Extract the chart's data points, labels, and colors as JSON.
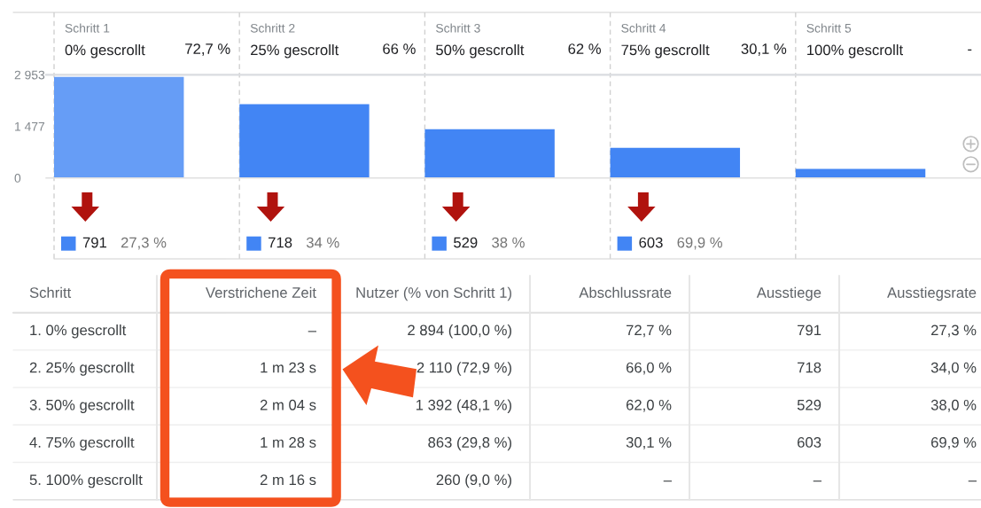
{
  "chart_data": [
    {
      "type": "bar",
      "categories": [
        "0% gescrollt",
        "25% gescrollt",
        "50% gescrollt",
        "75% gescrollt",
        "100% gescrollt"
      ],
      "values": [
        2894,
        2110,
        1392,
        863,
        260
      ],
      "color": "#4285f4",
      "colors": [
        "#669df6",
        "#4285f4",
        "#4285f4",
        "#4285f4",
        "#4285f4"
      ],
      "ylim": [
        0,
        2953
      ],
      "yticks": [
        0,
        {
          "value": 1477,
          "label": "1 477"
        },
        {
          "value": 2953,
          "label": "2 953"
        }
      ],
      "annotations": [
        "Schritt 1",
        "Schritt 2",
        "Schritt 3",
        "Schritt 4",
        "Schritt 5",
        "72,7 %",
        "66 %",
        "62 %",
        "30,1 %",
        "-",
        "791",
        "27,3 %",
        "718",
        "34 %",
        "529",
        "38 %",
        "603",
        "69,9 %"
      ]
    },
    {
      "type": "other",
      "categories": [
        "Schritt",
        "Verstrichene Zeit",
        "Nutzer (% von Schritt 1)",
        "Abschlussrate",
        "Ausstiege",
        "Ausstiegsrate"
      ],
      "cell_labels": [
        [
          "1. 0% gescrollt",
          "–",
          "2 894 (100,0 %)",
          "72,7 %",
          "791",
          "27,3 %"
        ],
        [
          "2. 25% gescrollt",
          "1 m 23 s",
          "2 110 (72,9 %)",
          "66,0 %",
          "718",
          "34,0 %"
        ],
        [
          "3. 50% gescrollt",
          "2 m 04 s",
          "1 392 (48,1 %)",
          "62,0 %",
          "529",
          "38,0 %"
        ],
        [
          "4. 75% gescrollt",
          "1 m 28 s",
          "863 (29,8 %)",
          "30,1 %",
          "603",
          "69,9 %"
        ],
        [
          "5. 100% gescrollt",
          "2 m 16 s",
          "260 (9,0 %)",
          "–",
          "–",
          "–"
        ]
      ]
    }
  ]
}
